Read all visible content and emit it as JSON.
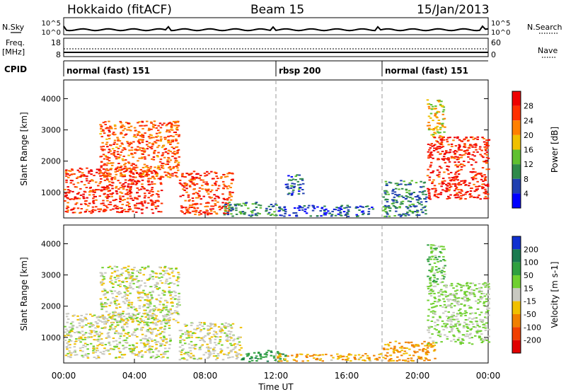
{
  "header": {
    "site": "Hokkaido (fitACF)",
    "beam": "Beam 15",
    "date": "15/Jan/2013"
  },
  "params": {
    "nsky_label": "N.Sky",
    "nsearch_label": "N.Search",
    "freq_label": "Freq.",
    "freq_unit": "[MHz]",
    "nave_label": "Nave",
    "cpid_label": "CPID",
    "noise_ticks": [
      "10^5",
      "10^0"
    ],
    "freq_ticks": [
      "18",
      "8"
    ],
    "nave_ticks": [
      "60",
      "0"
    ]
  },
  "cpid_segments": [
    {
      "label": "normal (fast) 151",
      "start_hour": 0,
      "end_hour": 12
    },
    {
      "label": "rbsp 200",
      "start_hour": 12,
      "end_hour": 18
    },
    {
      "label": "normal (fast) 151",
      "start_hour": 18,
      "end_hour": 24
    }
  ],
  "x_axis": {
    "title": "Time UT",
    "ticks": [
      "00:00",
      "04:00",
      "08:00",
      "12:00",
      "16:00",
      "20:00",
      "00:00"
    ],
    "range_hours": [
      0,
      24
    ]
  },
  "chart_data": [
    {
      "type": "heatmap",
      "panel": "power",
      "xlabel": "Time UT",
      "ylabel": "Slant Range [km]",
      "yticks": [
        "1000",
        "2000",
        "3000",
        "4000"
      ],
      "ylim": [
        180,
        4600
      ],
      "colorbar_label": "Power [dB]",
      "colorbar_ticks": [
        "4",
        "8",
        "12",
        "16",
        "20",
        "24",
        "28"
      ],
      "colors": [
        "#0000ff",
        "#2040b0",
        "#2f8a4a",
        "#60c030",
        "#f0c000",
        "#ff8000",
        "#ff3000",
        "#ee0000"
      ],
      "regions": [
        {
          "t": [
            0.0,
            5.5
          ],
          "range": [
            350,
            1800
          ],
          "power": 27
        },
        {
          "t": [
            2.0,
            6.5
          ],
          "range": [
            1500,
            3300
          ],
          "power": 24
        },
        {
          "t": [
            6.5,
            9.5
          ],
          "range": [
            300,
            1700
          ],
          "power": 26
        },
        {
          "t": [
            9.0,
            12.0
          ],
          "range": [
            250,
            700
          ],
          "power": 10
        },
        {
          "t": [
            12.0,
            17.5
          ],
          "range": [
            250,
            600
          ],
          "power": 6
        },
        {
          "t": [
            12.5,
            13.5
          ],
          "range": [
            900,
            1600
          ],
          "power": 8
        },
        {
          "t": [
            18.0,
            20.5
          ],
          "range": [
            250,
            1400
          ],
          "power": 9
        },
        {
          "t": [
            20.5,
            24.0
          ],
          "range": [
            800,
            2800
          ],
          "power": 28
        },
        {
          "t": [
            20.5,
            21.5
          ],
          "range": [
            2800,
            4000
          ],
          "power": 18
        }
      ]
    },
    {
      "type": "heatmap",
      "panel": "velocity",
      "xlabel": "Time UT",
      "ylabel": "Slant Range [km]",
      "yticks": [
        "1000",
        "2000",
        "3000",
        "4000"
      ],
      "ylim": [
        180,
        4600
      ],
      "colorbar_label": "Velocity [m s-1]",
      "colorbar_ticks": [
        "200",
        "100",
        "50",
        "15",
        "-15",
        "-50",
        "-100",
        "-200"
      ],
      "colors": [
        "#1030d0",
        "#1a7a50",
        "#30a040",
        "#70d030",
        "#c8c8c0",
        "#f0c000",
        "#f08000",
        "#f04000",
        "#e00000"
      ],
      "regions": [
        {
          "t": [
            0.0,
            6.0
          ],
          "range": [
            350,
            1800
          ],
          "velocity": 0
        },
        {
          "t": [
            2.0,
            6.5
          ],
          "range": [
            1500,
            3300
          ],
          "velocity": 0
        },
        {
          "t": [
            6.5,
            10.0
          ],
          "range": [
            300,
            1500
          ],
          "velocity": 0
        },
        {
          "t": [
            10.0,
            12.5
          ],
          "range": [
            250,
            600
          ],
          "velocity": 80
        },
        {
          "t": [
            12.0,
            18.0
          ],
          "range": [
            250,
            500
          ],
          "velocity": -40
        },
        {
          "t": [
            18.0,
            21.0
          ],
          "range": [
            250,
            900
          ],
          "velocity": -60
        },
        {
          "t": [
            20.5,
            24.0
          ],
          "range": [
            800,
            2800
          ],
          "velocity": 20
        },
        {
          "t": [
            20.5,
            21.5
          ],
          "range": [
            2800,
            4000
          ],
          "velocity": 40
        }
      ]
    }
  ]
}
